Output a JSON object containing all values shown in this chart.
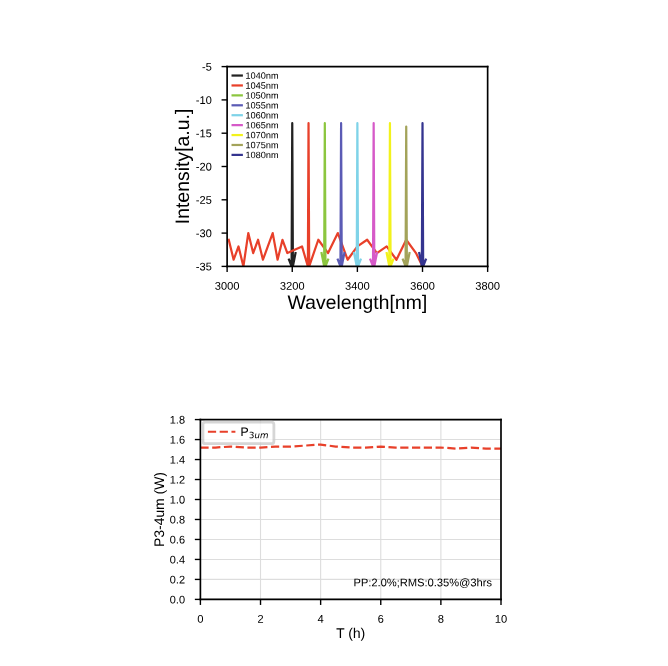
{
  "chart_data": [
    {
      "type": "line",
      "xlabel": "Wavelength[nm]",
      "ylabel": "Intensity[a.u.]",
      "xlim": [
        3000,
        3800
      ],
      "ylim": [
        -35,
        -5
      ],
      "xticks": [
        3000,
        3200,
        3400,
        3600,
        3800
      ],
      "yticks": [
        -35,
        -30,
        -25,
        -20,
        -15,
        -10,
        -5
      ],
      "legend": "top left",
      "grid": false,
      "series": [
        {
          "name": "1040nm",
          "color": "#222222",
          "x": [
            3190,
            3198,
            3200,
            3202,
            3210
          ],
          "values": [
            -34,
            -35,
            -13.5,
            -35,
            -33
          ]
        },
        {
          "name": "1045nm",
          "color": "#e8402a",
          "x": [
            3005,
            3020,
            3035,
            3050,
            3065,
            3080,
            3095,
            3110,
            3125,
            3140,
            3155,
            3170,
            3185,
            3230,
            3248,
            3250,
            3252,
            3280,
            3310,
            3340,
            3370,
            3400,
            3430,
            3460,
            3490,
            3520,
            3550,
            3580,
            3600
          ],
          "values": [
            -31,
            -34,
            -32,
            -35,
            -30,
            -33,
            -31,
            -34,
            -32,
            -30,
            -34,
            -31,
            -33,
            -32,
            -35,
            -13.5,
            -35,
            -31,
            -33,
            -30,
            -34,
            -32,
            -31,
            -33,
            -32,
            -34,
            -31,
            -33,
            -35
          ]
        },
        {
          "name": "1050nm",
          "color": "#8cc63f",
          "x": [
            3290,
            3298,
            3300,
            3302,
            3310
          ],
          "values": [
            -33,
            -35,
            -13.5,
            -35,
            -34
          ]
        },
        {
          "name": "1055nm",
          "color": "#5b5bb5",
          "x": [
            3340,
            3348,
            3350,
            3352,
            3360
          ],
          "values": [
            -34,
            -35,
            -13.5,
            -35,
            -33
          ]
        },
        {
          "name": "1060nm",
          "color": "#7fd3e8",
          "x": [
            3390,
            3398,
            3400,
            3402,
            3410
          ],
          "values": [
            -33,
            -35,
            -13.5,
            -35,
            -34
          ]
        },
        {
          "name": "1065nm",
          "color": "#d65ac8",
          "x": [
            3440,
            3448,
            3450,
            3452,
            3460
          ],
          "values": [
            -34,
            -35,
            -13.5,
            -35,
            -33
          ]
        },
        {
          "name": "1070nm",
          "color": "#f2f21c",
          "x": [
            3490,
            3498,
            3500,
            3502,
            3510
          ],
          "values": [
            -33,
            -35,
            -13.5,
            -35,
            -34
          ]
        },
        {
          "name": "1075nm",
          "color": "#a3a35a",
          "x": [
            3540,
            3548,
            3550,
            3552,
            3560
          ],
          "values": [
            -34,
            -35,
            -14,
            -35,
            -33
          ]
        },
        {
          "name": "1080nm",
          "color": "#34348f",
          "x": [
            3590,
            3598,
            3600,
            3602,
            3610
          ],
          "values": [
            -33,
            -35,
            -13.5,
            -35,
            -34
          ]
        }
      ]
    },
    {
      "type": "line",
      "xlabel": "T (h)",
      "ylabel": "P3-4um (W)",
      "xlim": [
        0,
        10
      ],
      "ylim": [
        0,
        1.8
      ],
      "xticks": [
        0,
        2,
        4,
        6,
        8,
        10
      ],
      "yticks": [
        {
          "value": 0,
          "label": "0.0"
        },
        0.2,
        0.4,
        0.6,
        0.8,
        {
          "value": 1,
          "label": "1.0"
        },
        1.2,
        1.4,
        1.6,
        1.8
      ],
      "legend": "top left",
      "grid": true,
      "line_style": "dashed",
      "annotations": [
        "PP:2.0%;RMS:0.35%@3hrs"
      ],
      "series": [
        {
          "name": "P$_{3um}$",
          "color": "#e8402a",
          "x": [
            0,
            0.5,
            1,
            1.5,
            2,
            2.5,
            3,
            3.5,
            4,
            4.5,
            5,
            5.5,
            6,
            6.5,
            7,
            7.5,
            8,
            8.5,
            9,
            9.5,
            10
          ],
          "values": [
            1.52,
            1.52,
            1.53,
            1.52,
            1.52,
            1.53,
            1.53,
            1.54,
            1.55,
            1.53,
            1.52,
            1.52,
            1.53,
            1.52,
            1.52,
            1.52,
            1.52,
            1.51,
            1.52,
            1.51,
            1.51
          ]
        }
      ]
    }
  ]
}
